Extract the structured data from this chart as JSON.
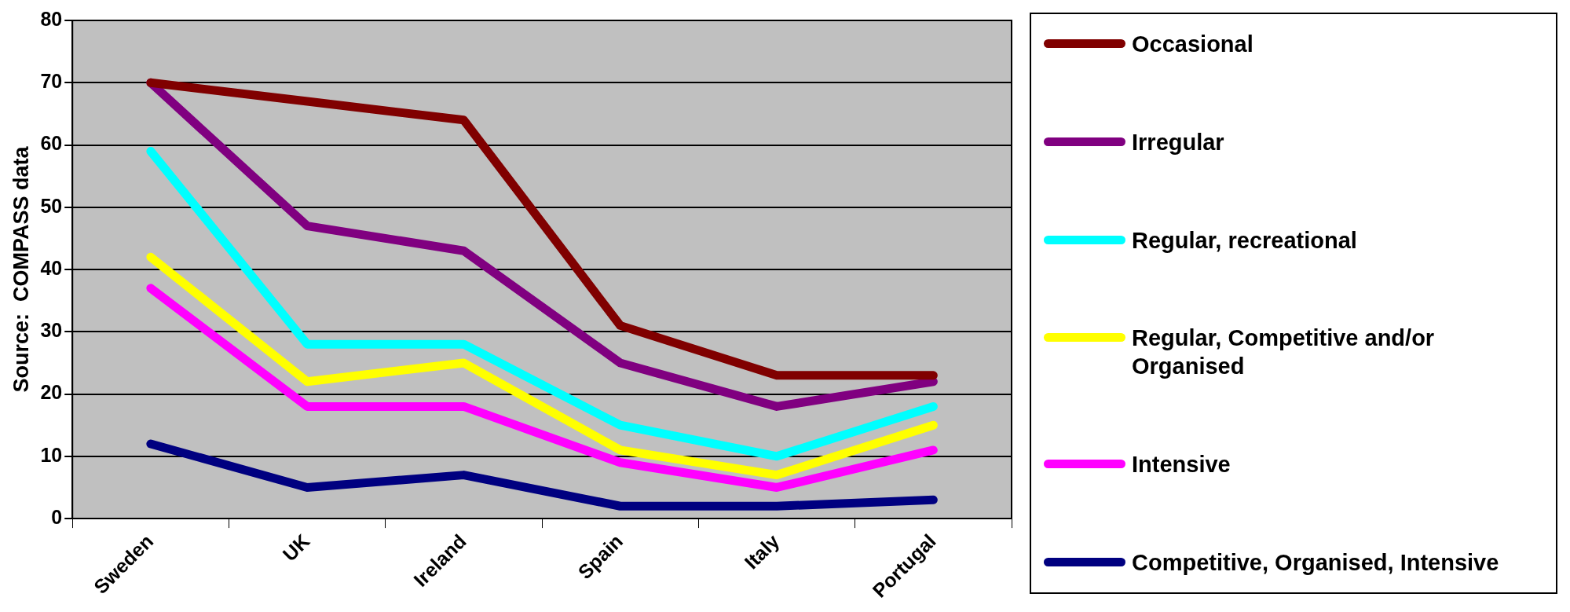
{
  "chart_data": {
    "type": "line",
    "ylabel": "Source:  COMPASS data",
    "categories": [
      "Sweden",
      "UK",
      "Ireland",
      "Spain",
      "Italy",
      "Portugal"
    ],
    "ylim": [
      0,
      80
    ],
    "yticks": [
      0,
      10,
      20,
      30,
      40,
      50,
      60,
      70,
      80
    ],
    "grid": "y",
    "legend": "right",
    "marker": "none",
    "line_style": "solid",
    "series": [
      {
        "name": "Occasional",
        "color": "#800000",
        "values": [
          70,
          67,
          64,
          31,
          23,
          23
        ]
      },
      {
        "name": "Irregular",
        "color": "#800080",
        "values": [
          70,
          47,
          43,
          25,
          18,
          22
        ]
      },
      {
        "name": "Regular, recreational",
        "color": "#00ffff",
        "values": [
          59,
          28,
          28,
          15,
          10,
          18
        ]
      },
      {
        "name": "Regular, Competitive and/or Organised",
        "color": "#ffff00",
        "values": [
          42,
          22,
          25,
          11,
          7,
          15
        ]
      },
      {
        "name": "Intensive",
        "color": "#ff00ff",
        "values": [
          37,
          18,
          18,
          9,
          5,
          11
        ]
      },
      {
        "name": "Competitive, Organised, Intensive",
        "color": "#000080",
        "values": [
          12,
          5,
          7,
          2,
          2,
          3
        ]
      }
    ]
  }
}
